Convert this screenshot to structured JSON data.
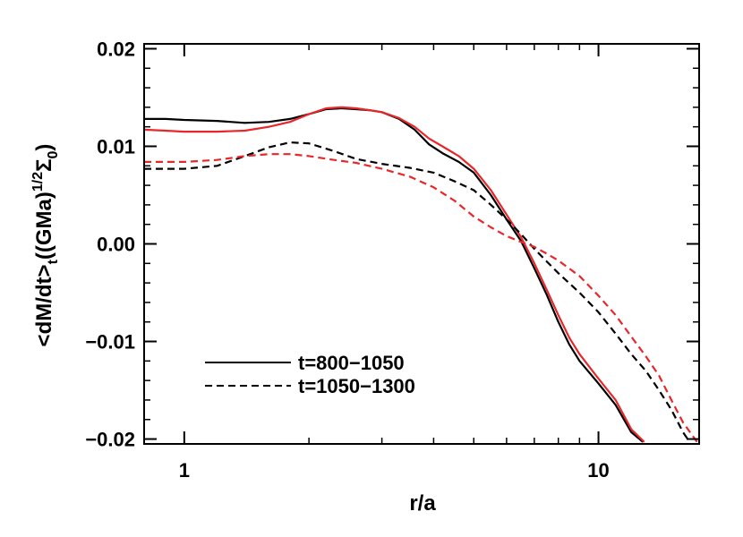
{
  "chart_data": {
    "type": "line",
    "xscale": "log",
    "xlim": [
      0.8,
      17.5
    ],
    "ylim": [
      -0.0205,
      0.0205
    ],
    "xlabel": "r/a",
    "ylabel": "<dM/dt>t((GMa)1/2Σ0)",
    "ylabel_parts": {
      "pre": "<dM/dt>",
      "sub1": "t",
      "mid": "((GMa)",
      "sup": "1/2",
      "sigma": "Σ",
      "sub2": "0",
      "post": ")"
    },
    "xticks": [
      {
        "value": 1,
        "label": "1"
      },
      {
        "value": 10,
        "label": "10"
      }
    ],
    "xminor": [
      2,
      3,
      4,
      5,
      6,
      7,
      8,
      9
    ],
    "yticks": [
      {
        "value": 0.02,
        "label": "0.02"
      },
      {
        "value": 0.01,
        "label": "0.01"
      },
      {
        "value": 0.0,
        "label": "0.00"
      },
      {
        "value": -0.01,
        "label": "−0.01"
      },
      {
        "value": -0.02,
        "label": "−0.02"
      }
    ],
    "yminor_step": 0.002,
    "legend": {
      "position": "bottom-left",
      "entries": [
        {
          "label": "t=800−1050",
          "style": "solid"
        },
        {
          "label": "t=1050−1300",
          "style": "dashed"
        }
      ]
    },
    "series": [
      {
        "style": "solid",
        "color": "#000000",
        "points": [
          [
            0.8,
            0.0128
          ],
          [
            0.9,
            0.0128
          ],
          [
            1.0,
            0.0127
          ],
          [
            1.2,
            0.0126
          ],
          [
            1.4,
            0.0124
          ],
          [
            1.6,
            0.0125
          ],
          [
            1.8,
            0.0128
          ],
          [
            2.0,
            0.0133
          ],
          [
            2.2,
            0.0138
          ],
          [
            2.4,
            0.0139
          ],
          [
            2.6,
            0.0138
          ],
          [
            2.8,
            0.0137
          ],
          [
            3.0,
            0.0135
          ],
          [
            3.3,
            0.0128
          ],
          [
            3.6,
            0.0117
          ],
          [
            3.9,
            0.0102
          ],
          [
            4.2,
            0.0093
          ],
          [
            4.6,
            0.0084
          ],
          [
            5.0,
            0.0073
          ],
          [
            5.5,
            0.005
          ],
          [
            6.0,
            0.0025
          ],
          [
            6.5,
            0.0003
          ],
          [
            7.0,
            -0.0025
          ],
          [
            7.5,
            -0.0052
          ],
          [
            8.0,
            -0.008
          ],
          [
            8.5,
            -0.0103
          ],
          [
            9.0,
            -0.012
          ],
          [
            10.0,
            -0.0143
          ],
          [
            11.0,
            -0.0165
          ],
          [
            12.0,
            -0.0193
          ],
          [
            12.8,
            -0.0203
          ]
        ]
      },
      {
        "style": "solid",
        "color": "#e8272a",
        "points": [
          [
            0.8,
            0.0117
          ],
          [
            0.9,
            0.0116
          ],
          [
            1.0,
            0.0115
          ],
          [
            1.2,
            0.0115
          ],
          [
            1.4,
            0.0116
          ],
          [
            1.6,
            0.012
          ],
          [
            1.8,
            0.0125
          ],
          [
            2.0,
            0.0133
          ],
          [
            2.2,
            0.0139
          ],
          [
            2.4,
            0.014
          ],
          [
            2.6,
            0.0139
          ],
          [
            2.8,
            0.0137
          ],
          [
            3.0,
            0.0135
          ],
          [
            3.3,
            0.0129
          ],
          [
            3.6,
            0.012
          ],
          [
            3.9,
            0.0108
          ],
          [
            4.2,
            0.01
          ],
          [
            4.6,
            0.009
          ],
          [
            5.0,
            0.0077
          ],
          [
            5.5,
            0.0055
          ],
          [
            6.0,
            0.003
          ],
          [
            6.5,
            0.0007
          ],
          [
            7.0,
            -0.002
          ],
          [
            7.5,
            -0.0047
          ],
          [
            8.0,
            -0.0073
          ],
          [
            8.5,
            -0.0096
          ],
          [
            9.0,
            -0.0113
          ],
          [
            10.0,
            -0.0138
          ],
          [
            11.0,
            -0.016
          ],
          [
            12.0,
            -0.019
          ],
          [
            12.9,
            -0.0203
          ]
        ]
      },
      {
        "style": "dashed",
        "color": "#000000",
        "points": [
          [
            0.8,
            0.0077
          ],
          [
            1.0,
            0.0077
          ],
          [
            1.2,
            0.008
          ],
          [
            1.4,
            0.009
          ],
          [
            1.6,
            0.0099
          ],
          [
            1.8,
            0.0104
          ],
          [
            2.0,
            0.0103
          ],
          [
            2.3,
            0.0095
          ],
          [
            2.6,
            0.0087
          ],
          [
            3.0,
            0.0082
          ],
          [
            3.5,
            0.0078
          ],
          [
            4.0,
            0.0073
          ],
          [
            4.5,
            0.0064
          ],
          [
            5.0,
            0.0055
          ],
          [
            5.5,
            0.004
          ],
          [
            6.0,
            0.0025
          ],
          [
            6.5,
            0.001
          ],
          [
            7.0,
            -0.0005
          ],
          [
            7.5,
            -0.0018
          ],
          [
            8.0,
            -0.003
          ],
          [
            9.0,
            -0.005
          ],
          [
            10.0,
            -0.007
          ],
          [
            11.0,
            -0.0092
          ],
          [
            12.0,
            -0.0113
          ],
          [
            13.0,
            -0.013
          ],
          [
            14.0,
            -0.015
          ],
          [
            15.0,
            -0.017
          ],
          [
            16.0,
            -0.0193
          ],
          [
            16.6,
            -0.0203
          ]
        ]
      },
      {
        "style": "dashed",
        "color": "#e8272a",
        "points": [
          [
            0.8,
            0.0084
          ],
          [
            1.0,
            0.0084
          ],
          [
            1.2,
            0.0086
          ],
          [
            1.4,
            0.009
          ],
          [
            1.6,
            0.0092
          ],
          [
            1.8,
            0.0092
          ],
          [
            2.0,
            0.009
          ],
          [
            2.3,
            0.0086
          ],
          [
            2.6,
            0.0083
          ],
          [
            3.0,
            0.0077
          ],
          [
            3.5,
            0.0069
          ],
          [
            4.0,
            0.0058
          ],
          [
            4.5,
            0.0044
          ],
          [
            5.0,
            0.0028
          ],
          [
            5.5,
            0.0017
          ],
          [
            6.0,
            0.0008
          ],
          [
            6.5,
            0.0002
          ],
          [
            7.0,
            -0.0003
          ],
          [
            7.5,
            -0.001
          ],
          [
            8.0,
            -0.0017
          ],
          [
            9.0,
            -0.0033
          ],
          [
            10.0,
            -0.0053
          ],
          [
            11.0,
            -0.0073
          ],
          [
            12.0,
            -0.0095
          ],
          [
            13.0,
            -0.0115
          ],
          [
            14.0,
            -0.0135
          ],
          [
            15.0,
            -0.016
          ],
          [
            16.0,
            -0.0183
          ],
          [
            17.3,
            -0.0203
          ]
        ]
      }
    ]
  }
}
